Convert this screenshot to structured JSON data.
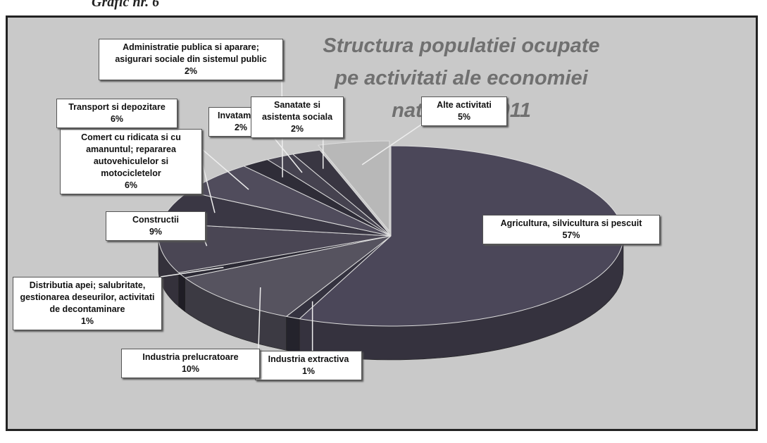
{
  "caption": "Grafic nr. 6",
  "chart_data": {
    "type": "pie",
    "title": "Structura populatiei ocupate pe activitati ale economiei nationale 2011",
    "categories": [
      "Agricultura, silvicultura si pescuit",
      "Industria extractiva",
      "Industria prelucratoare",
      "Distributia apei; salubritate, gestionarea deseurilor, activitati de decontaminare",
      "Constructii",
      "Comert cu ridicata si cu amanuntul; repararea autovehiculelor si motocicletelor",
      "Transport si depozitare",
      "Administratie publica si aparare; asigurari sociale din sistemul public",
      "Invatamant",
      "Sanatate si asistenta sociala",
      "Alte activitati"
    ],
    "values": [
      57,
      1,
      10,
      1,
      9,
      6,
      6,
      2,
      2,
      2,
      5
    ],
    "value_labels": [
      "57%",
      "1%",
      "10%",
      "1%",
      "9%",
      "6%",
      "6%",
      "2%",
      "2%",
      "2%",
      "5%"
    ],
    "colors": [
      "#4b4759",
      "#34323f",
      "#56535f",
      "#2c2a35",
      "#4a4654",
      "#3a3744",
      "#504c5c",
      "#2f2d38",
      "#45424f",
      "#393642",
      "#b8b8b8"
    ]
  }
}
